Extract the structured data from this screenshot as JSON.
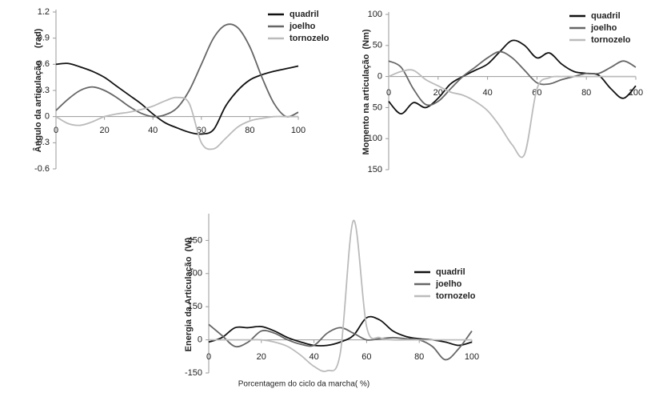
{
  "chart_data": [
    {
      "type": "line",
      "ylabel": "Ângulo da articulação     (rad)",
      "x": [
        0,
        5,
        10,
        15,
        20,
        25,
        30,
        35,
        40,
        45,
        50,
        55,
        60,
        65,
        70,
        75,
        80,
        85,
        90,
        95,
        100
      ],
      "xlim": [
        0,
        100
      ],
      "ylim": [
        -0.6,
        1.2
      ],
      "xticks": [
        0,
        20,
        40,
        60,
        80,
        100
      ],
      "yticks": [
        1.2,
        0.9,
        0.6,
        0.3,
        0,
        -0.3,
        -0.6
      ],
      "series": [
        {
          "name": "quadril",
          "color": "#111111",
          "values": [
            0.6,
            0.61,
            0.57,
            0.52,
            0.45,
            0.35,
            0.25,
            0.15,
            0.03,
            -0.07,
            -0.13,
            -0.18,
            -0.2,
            -0.15,
            0.12,
            0.3,
            0.42,
            0.48,
            0.52,
            0.55,
            0.58
          ]
        },
        {
          "name": "joelho",
          "color": "#666666",
          "values": [
            0.07,
            0.2,
            0.3,
            0.34,
            0.3,
            0.22,
            0.12,
            0.04,
            0.0,
            0.02,
            0.1,
            0.3,
            0.6,
            0.9,
            1.05,
            1.02,
            0.8,
            0.45,
            0.15,
            0.0,
            0.05
          ]
        },
        {
          "name": "tornozelo",
          "color": "#bbbbbb",
          "values": [
            0,
            -0.08,
            -0.1,
            -0.06,
            0,
            0.03,
            0.05,
            0.08,
            0.12,
            0.18,
            0.22,
            0.15,
            -0.3,
            -0.37,
            -0.25,
            -0.12,
            -0.05,
            -0.02,
            0,
            0,
            0
          ]
        }
      ]
    },
    {
      "type": "line",
      "ylabel": "Momento na articulação  (Nm)",
      "x": [
        0,
        5,
        10,
        15,
        20,
        25,
        30,
        35,
        40,
        45,
        50,
        55,
        60,
        65,
        70,
        75,
        80,
        85,
        90,
        95,
        100
      ],
      "xlim": [
        0,
        100
      ],
      "ylim": [
        -150,
        100
      ],
      "xticks": [
        0,
        20,
        40,
        60,
        80,
        100
      ],
      "yticks": [
        100,
        50,
        0,
        {
          "value": -50,
          "label": "50"
        },
        {
          "value": -100,
          "label": "100"
        },
        {
          "value": -150,
          "label": "150"
        }
      ],
      "series": [
        {
          "name": "quadril",
          "color": "#111111",
          "values": [
            -40,
            -60,
            -42,
            -50,
            -35,
            -12,
            0,
            10,
            20,
            40,
            58,
            50,
            30,
            38,
            20,
            8,
            5,
            2,
            -20,
            -35,
            -15
          ]
        },
        {
          "name": "joelho",
          "color": "#666666",
          "values": [
            25,
            15,
            -20,
            -45,
            -40,
            -20,
            0,
            15,
            30,
            40,
            30,
            10,
            -10,
            -12,
            -5,
            0,
            5,
            5,
            15,
            25,
            15
          ]
        },
        {
          "name": "tornozelo",
          "color": "#bbbbbb",
          "values": [
            0,
            8,
            10,
            -5,
            -15,
            -25,
            -30,
            -40,
            -55,
            -80,
            -110,
            -125,
            -20,
            -2,
            0,
            0,
            0,
            0,
            0,
            0,
            0
          ]
        }
      ]
    },
    {
      "type": "line",
      "ylabel": "Energia da Articulação  (W)",
      "xlabel": "Porcentagem do ciclo da marcha( %)",
      "x": [
        0,
        5,
        10,
        15,
        20,
        25,
        30,
        35,
        40,
        45,
        50,
        55,
        60,
        65,
        70,
        75,
        80,
        85,
        90,
        95,
        100
      ],
      "xlim": [
        0,
        100
      ],
      "ylim": [
        -150,
        560
      ],
      "xticks": [
        0,
        20,
        40,
        60,
        80,
        100
      ],
      "yticks": [
        450,
        300,
        150,
        0,
        -150
      ],
      "series": [
        {
          "name": "quadril",
          "color": "#111111",
          "values": [
            -10,
            10,
            55,
            55,
            60,
            40,
            10,
            -10,
            -25,
            -25,
            -10,
            20,
            100,
            90,
            40,
            15,
            5,
            0,
            -10,
            -25,
            -10
          ]
        },
        {
          "name": "joelho",
          "color": "#666666",
          "values": [
            70,
            20,
            -30,
            -10,
            40,
            30,
            0,
            -20,
            -25,
            30,
            55,
            30,
            0,
            5,
            10,
            5,
            0,
            -30,
            -90,
            -40,
            40
          ]
        },
        {
          "name": "tornozelo",
          "color": "#bbbbbb",
          "values": [
            0,
            0,
            0,
            0,
            0,
            -10,
            -30,
            -70,
            -120,
            -140,
            -60,
            540,
            60,
            10,
            0,
            0,
            0,
            0,
            0,
            0,
            0
          ]
        }
      ]
    }
  ]
}
